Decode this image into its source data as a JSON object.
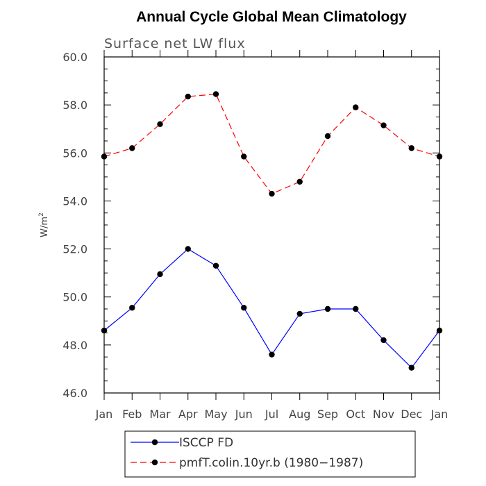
{
  "chart_data": {
    "type": "line",
    "title": "Annual Cycle Global Mean Climatology",
    "subtitle": "Surface net LW flux",
    "ylabel": "W/m",
    "ylabel_sup": "2",
    "xlabel": "",
    "ylim": [
      46.0,
      60.0
    ],
    "yticks": [
      "46.0",
      "48.0",
      "50.0",
      "52.0",
      "54.0",
      "56.0",
      "58.0",
      "60.0"
    ],
    "categories": [
      "Jan",
      "Feb",
      "Mar",
      "Apr",
      "May",
      "Jun",
      "Jul",
      "Aug",
      "Sep",
      "Oct",
      "Nov",
      "Dec",
      "Jan"
    ],
    "grid": false,
    "legend_position": "bottom",
    "series": [
      {
        "name": "ISCCP FD",
        "color": "#0000ff",
        "dash": "solid",
        "values": [
          48.6,
          49.55,
          50.95,
          52.0,
          51.3,
          49.55,
          47.6,
          49.3,
          49.5,
          49.5,
          48.2,
          47.05,
          48.6
        ]
      },
      {
        "name": "pmfT.colin.10yr.b (1980−1987)",
        "color": "#ff0000",
        "dash": "dashed",
        "values": [
          55.85,
          56.2,
          57.2,
          58.35,
          58.45,
          55.85,
          54.3,
          54.8,
          56.7,
          57.9,
          57.15,
          56.2,
          55.85
        ]
      }
    ]
  }
}
